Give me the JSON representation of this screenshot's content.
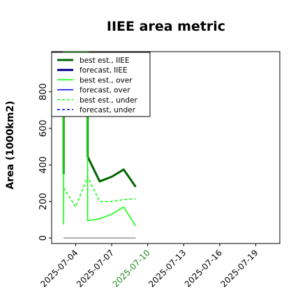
{
  "chart_data": {
    "type": "line",
    "title": "IIEE area metric",
    "xlabel": "",
    "ylabel": "Area (1000km2)",
    "xlim": [
      "2025-07-02",
      "2025-07-21"
    ],
    "ylim": [
      -30,
      1020
    ],
    "yticks": [
      0,
      200,
      400,
      600,
      800
    ],
    "xticks": [
      {
        "date": "2025-07-04",
        "label": "2025-07-04",
        "color": "#000000"
      },
      {
        "date": "2025-07-07",
        "label": "2025-07-07",
        "color": "#000000"
      },
      {
        "date": "2025-07-10",
        "label": "2025-07-10",
        "color": "#228b22"
      },
      {
        "date": "2025-07-13",
        "label": "2025-07-13",
        "color": "#000000"
      },
      {
        "date": "2025-07-16",
        "label": "2025-07-16",
        "color": "#000000"
      },
      {
        "date": "2025-07-19",
        "label": "2025-07-19",
        "color": "#000000"
      }
    ],
    "grid": false,
    "legend_position": "top-left",
    "series": [
      {
        "name": "best est., IIEE",
        "color": "#006400",
        "dash": "",
        "width": 3,
        "x": [
          "2025-07-03",
          "2025-07-03",
          "2025-07-05",
          "2025-07-05",
          "2025-07-06",
          "2025-07-07",
          "2025-07-08",
          "2025-07-09"
        ],
        "y": [
          350,
          1020,
          1020,
          445,
          310,
          335,
          375,
          280
        ]
      },
      {
        "name": "forecast, IIEE",
        "color": "#00008b",
        "dash": "",
        "width": 3,
        "x": [],
        "y": []
      },
      {
        "name": "best est., over",
        "color": "#00ff00",
        "dash": "",
        "width": 1.5,
        "x": [
          "2025-07-03",
          "2025-07-03",
          "2025-07-05",
          "2025-07-05",
          "2025-07-06",
          "2025-07-07",
          "2025-07-08",
          "2025-07-09"
        ],
        "y": [
          75,
          1020,
          1020,
          95,
          105,
          130,
          170,
          65
        ]
      },
      {
        "name": "forecast, over",
        "color": "#0000ff",
        "dash": "",
        "width": 1.5,
        "x": [],
        "y": []
      },
      {
        "name": "best est., under",
        "color": "#00ff00",
        "dash": "4,3",
        "width": 1.5,
        "x": [
          "2025-07-03",
          "2025-07-04",
          "2025-07-05",
          "2025-07-06",
          "2025-07-07",
          "2025-07-08",
          "2025-07-09"
        ],
        "y": [
          275,
          170,
          335,
          200,
          200,
          210,
          215
        ]
      },
      {
        "name": "forecast, under",
        "color": "#0000ff",
        "dash": "4,3",
        "width": 1.5,
        "x": [],
        "y": []
      }
    ],
    "reference_lines": [
      {
        "x": [
          "2025-07-03",
          "2025-07-09"
        ],
        "y": [
          0,
          0
        ],
        "color": "#808080",
        "width": 1.2
      }
    ]
  }
}
